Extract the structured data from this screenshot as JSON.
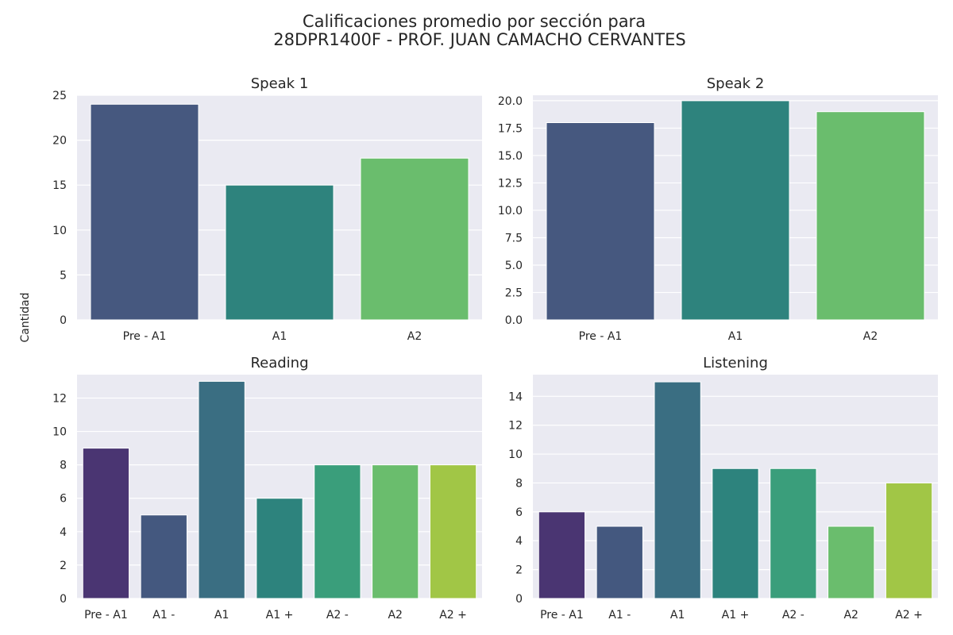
{
  "figure": {
    "title_line1": "Calificaciones promedio por sección para",
    "title_line2": "28DPR1400F - PROF. JUAN CAMACHO CERVANTES",
    "ylabel": "Cantidad"
  },
  "chart_data": [
    {
      "type": "bar",
      "title": "Speak 1",
      "categories": [
        "Pre - A1",
        "A1",
        "A2"
      ],
      "values": [
        24,
        15,
        18
      ],
      "colors": [
        "#46587f",
        "#2e837d",
        "#6abd6d"
      ],
      "ylim": [
        0,
        25
      ],
      "yticks": [
        0,
        5,
        10,
        15,
        20,
        25
      ],
      "ytick_labels": [
        "0",
        "5",
        "10",
        "15",
        "20",
        "25"
      ],
      "grid": true
    },
    {
      "type": "bar",
      "title": "Speak 2",
      "categories": [
        "Pre - A1",
        "A1",
        "A2"
      ],
      "values": [
        18,
        20,
        19
      ],
      "colors": [
        "#46587f",
        "#2e837d",
        "#6abd6d"
      ],
      "ylim": [
        0,
        20.5
      ],
      "yticks": [
        0,
        2.5,
        5,
        7.5,
        10,
        12.5,
        15,
        17.5,
        20
      ],
      "ytick_labels": [
        "0.0",
        "2.5",
        "5.0",
        "7.5",
        "10.0",
        "12.5",
        "15.0",
        "17.5",
        "20.0"
      ],
      "grid": true
    },
    {
      "type": "bar",
      "title": "Reading",
      "categories": [
        "Pre - A1",
        "A1 -",
        "A1",
        "A1 +",
        "A2 -",
        "A2",
        "A2 +"
      ],
      "values": [
        9,
        5,
        13,
        6,
        8,
        8,
        8
      ],
      "colors": [
        "#4a3572",
        "#44587f",
        "#3a6e82",
        "#2d837d",
        "#3a9e7b",
        "#6abd6d",
        "#a1c646"
      ],
      "ylim": [
        0,
        13.4
      ],
      "yticks": [
        0,
        2,
        4,
        6,
        8,
        10,
        12
      ],
      "ytick_labels": [
        "0",
        "2",
        "4",
        "6",
        "8",
        "10",
        "12"
      ],
      "grid": true
    },
    {
      "type": "bar",
      "title": "Listening",
      "categories": [
        "Pre - A1",
        "A1 -",
        "A1",
        "A1 +",
        "A2 -",
        "A2",
        "A2 +"
      ],
      "values": [
        6,
        5,
        15,
        9,
        9,
        5,
        8
      ],
      "colors": [
        "#4a3572",
        "#44587f",
        "#3a6e82",
        "#2d837d",
        "#3a9e7b",
        "#6abd6d",
        "#a1c646"
      ],
      "ylim": [
        0,
        15.5
      ],
      "yticks": [
        0,
        2,
        4,
        6,
        8,
        10,
        12,
        14
      ],
      "ytick_labels": [
        "0",
        "2",
        "4",
        "6",
        "8",
        "10",
        "12",
        "14"
      ],
      "grid": true
    }
  ]
}
